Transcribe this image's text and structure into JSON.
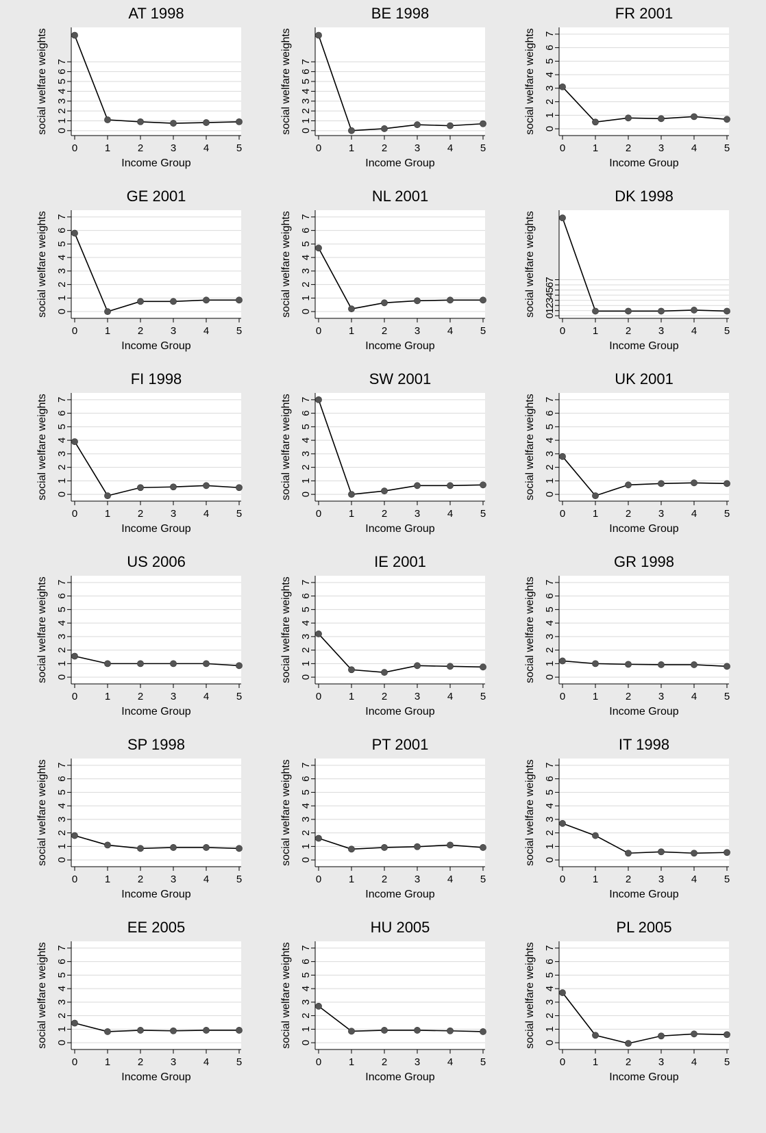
{
  "colors": {
    "background": "#eaeaea",
    "plot_bg": "#ffffff",
    "line": "#000000",
    "marker": "#555555",
    "grid": "#d9d9d9"
  },
  "chart_data": [
    {
      "type": "line",
      "title": "AT 1998",
      "xlabel": "Income Group",
      "ylabel": "social welfare weights",
      "x": [
        0,
        1,
        2,
        3,
        4,
        5
      ],
      "ytick_labels": [
        "0",
        "1",
        "2",
        "3",
        "4",
        "5",
        "6",
        "7"
      ],
      "ylim": [
        -0.5,
        10.5
      ],
      "values": [
        9.7,
        1.1,
        0.9,
        0.75,
        0.82,
        0.9
      ],
      "grid": true
    },
    {
      "type": "line",
      "title": "BE 1998",
      "xlabel": "Income Group",
      "ylabel": "social welfare weights",
      "x": [
        0,
        1,
        2,
        3,
        4,
        5
      ],
      "ytick_labels": [
        "0",
        "1",
        "2",
        "3",
        "4",
        "5",
        "6",
        "7"
      ],
      "ylim": [
        -0.5,
        10.5
      ],
      "values": [
        9.7,
        0.0,
        0.2,
        0.6,
        0.5,
        0.7
      ],
      "grid": true
    },
    {
      "type": "line",
      "title": "FR 2001",
      "xlabel": "Income Group",
      "ylabel": "social welfare weights",
      "x": [
        0,
        1,
        2,
        3,
        4,
        5
      ],
      "ytick_labels": [
        "0",
        "1",
        "2",
        "3",
        "4",
        "5",
        "6",
        "7"
      ],
      "ylim": [
        -0.5,
        7.5
      ],
      "values": [
        3.1,
        0.5,
        0.8,
        0.75,
        0.9,
        0.7
      ],
      "grid": true
    },
    {
      "type": "line",
      "title": "GE 2001",
      "xlabel": "Income Group",
      "ylabel": "social welfare weights",
      "x": [
        0,
        1,
        2,
        3,
        4,
        5
      ],
      "ytick_labels": [
        "0",
        "1",
        "2",
        "3",
        "4",
        "5",
        "6",
        "7"
      ],
      "ylim": [
        -0.5,
        7.5
      ],
      "values": [
        5.8,
        0.0,
        0.75,
        0.75,
        0.85,
        0.85
      ],
      "grid": true
    },
    {
      "type": "line",
      "title": "NL 2001",
      "xlabel": "Income Group",
      "ylabel": "social welfare weights",
      "x": [
        0,
        1,
        2,
        3,
        4,
        5
      ],
      "ytick_labels": [
        "0",
        "1",
        "2",
        "3",
        "4",
        "5",
        "6",
        "7"
      ],
      "ylim": [
        -0.5,
        7.5
      ],
      "values": [
        4.7,
        0.2,
        0.65,
        0.8,
        0.85,
        0.85
      ],
      "grid": true
    },
    {
      "type": "line",
      "title": "DK 1998",
      "xlabel": "Income Group",
      "ylabel": "social welfare weights",
      "x": [
        0,
        1,
        2,
        3,
        4,
        5
      ],
      "ytick_labels": [
        "0",
        "1",
        "2",
        "3",
        "4",
        "5",
        "6",
        "7"
      ],
      "ylim": [
        -0.5,
        20.5
      ],
      "values": [
        19.0,
        0.9,
        0.9,
        0.9,
        1.1,
        0.9
      ],
      "grid": true
    },
    {
      "type": "line",
      "title": "FI 1998",
      "xlabel": "Income Group",
      "ylabel": "social welfare weights",
      "x": [
        0,
        1,
        2,
        3,
        4,
        5
      ],
      "ytick_labels": [
        "0",
        "1",
        "2",
        "3",
        "4",
        "5",
        "6",
        "7"
      ],
      "ylim": [
        -0.5,
        7.5
      ],
      "values": [
        3.9,
        -0.1,
        0.5,
        0.55,
        0.65,
        0.5
      ],
      "grid": true
    },
    {
      "type": "line",
      "title": "SW 2001",
      "xlabel": "Income Group",
      "ylabel": "social welfare weights",
      "x": [
        0,
        1,
        2,
        3,
        4,
        5
      ],
      "ytick_labels": [
        "0",
        "1",
        "2",
        "3",
        "4",
        "5",
        "6",
        "7"
      ],
      "ylim": [
        -0.5,
        7.5
      ],
      "values": [
        7.0,
        0.0,
        0.25,
        0.65,
        0.65,
        0.7
      ],
      "grid": true
    },
    {
      "type": "line",
      "title": "UK 2001",
      "xlabel": "Income Group",
      "ylabel": "social welfare weights",
      "x": [
        0,
        1,
        2,
        3,
        4,
        5
      ],
      "ytick_labels": [
        "0",
        "1",
        "2",
        "3",
        "4",
        "5",
        "6",
        "7"
      ],
      "ylim": [
        -0.5,
        7.5
      ],
      "values": [
        2.8,
        -0.1,
        0.7,
        0.8,
        0.85,
        0.8
      ],
      "grid": true
    },
    {
      "type": "line",
      "title": "US 2006",
      "xlabel": "Income Group",
      "ylabel": "social welfare weights",
      "x": [
        0,
        1,
        2,
        3,
        4,
        5
      ],
      "ytick_labels": [
        "0",
        "1",
        "2",
        "3",
        "4",
        "5",
        "6",
        "7"
      ],
      "ylim": [
        -0.5,
        7.5
      ],
      "values": [
        1.55,
        1.0,
        1.0,
        1.0,
        1.0,
        0.85
      ],
      "grid": true
    },
    {
      "type": "line",
      "title": "IE 2001",
      "xlabel": "Income Group",
      "ylabel": "social welfare weights",
      "x": [
        0,
        1,
        2,
        3,
        4,
        5
      ],
      "ytick_labels": [
        "0",
        "1",
        "2",
        "3",
        "4",
        "5",
        "6",
        "7"
      ],
      "ylim": [
        -0.5,
        7.5
      ],
      "values": [
        3.2,
        0.55,
        0.35,
        0.85,
        0.8,
        0.75
      ],
      "grid": true
    },
    {
      "type": "line",
      "title": "GR 1998",
      "xlabel": "Income Group",
      "ylabel": "social welfare weights",
      "x": [
        0,
        1,
        2,
        3,
        4,
        5
      ],
      "ytick_labels": [
        "0",
        "1",
        "2",
        "3",
        "4",
        "5",
        "6",
        "7"
      ],
      "ylim": [
        -0.5,
        7.5
      ],
      "values": [
        1.2,
        1.0,
        0.95,
        0.92,
        0.92,
        0.8
      ],
      "grid": true
    },
    {
      "type": "line",
      "title": "SP 1998",
      "xlabel": "Income Group",
      "ylabel": "social welfare weights",
      "x": [
        0,
        1,
        2,
        3,
        4,
        5
      ],
      "ytick_labels": [
        "0",
        "1",
        "2",
        "3",
        "4",
        "5",
        "6",
        "7"
      ],
      "ylim": [
        -0.5,
        7.5
      ],
      "values": [
        1.8,
        1.1,
        0.85,
        0.92,
        0.92,
        0.85
      ],
      "grid": true
    },
    {
      "type": "line",
      "title": "PT 2001",
      "xlabel": "Income Group",
      "ylabel": "social welfare weights",
      "x": [
        0,
        1,
        2,
        3,
        4,
        5
      ],
      "ytick_labels": [
        "0",
        "1",
        "2",
        "3",
        "4",
        "5",
        "6",
        "7"
      ],
      "ylim": [
        -0.5,
        7.5
      ],
      "values": [
        1.6,
        0.8,
        0.92,
        0.98,
        1.1,
        0.92
      ],
      "grid": true
    },
    {
      "type": "line",
      "title": "IT 1998",
      "xlabel": "Income Group",
      "ylabel": "social welfare weights",
      "x": [
        0,
        1,
        2,
        3,
        4,
        5
      ],
      "ytick_labels": [
        "0",
        "1",
        "2",
        "3",
        "4",
        "5",
        "6",
        "7"
      ],
      "ylim": [
        -0.5,
        7.5
      ],
      "values": [
        2.7,
        1.8,
        0.5,
        0.6,
        0.5,
        0.55
      ],
      "grid": true
    },
    {
      "type": "line",
      "title": "EE 2005",
      "xlabel": "Income Group",
      "ylabel": "social welfare weights",
      "x": [
        0,
        1,
        2,
        3,
        4,
        5
      ],
      "ytick_labels": [
        "0",
        "1",
        "2",
        "3",
        "4",
        "5",
        "6",
        "7"
      ],
      "ylim": [
        -0.5,
        7.5
      ],
      "values": [
        1.45,
        0.82,
        0.92,
        0.88,
        0.92,
        0.92
      ],
      "grid": true
    },
    {
      "type": "line",
      "title": "HU 2005",
      "xlabel": "Income Group",
      "ylabel": "social welfare weights",
      "x": [
        0,
        1,
        2,
        3,
        4,
        5
      ],
      "ytick_labels": [
        "0",
        "1",
        "2",
        "3",
        "4",
        "5",
        "6",
        "7"
      ],
      "ylim": [
        -0.5,
        7.5
      ],
      "values": [
        2.7,
        0.85,
        0.92,
        0.92,
        0.88,
        0.82
      ],
      "grid": true
    },
    {
      "type": "line",
      "title": "PL 2005",
      "xlabel": "Income Group",
      "ylabel": "social welfare weights",
      "x": [
        0,
        1,
        2,
        3,
        4,
        5
      ],
      "ytick_labels": [
        "0",
        "1",
        "2",
        "3",
        "4",
        "5",
        "6",
        "7"
      ],
      "ylim": [
        -0.5,
        7.5
      ],
      "values": [
        3.7,
        0.55,
        -0.05,
        0.5,
        0.65,
        0.6
      ],
      "grid": true
    }
  ]
}
